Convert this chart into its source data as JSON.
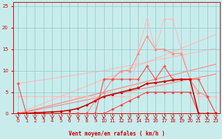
{
  "x": [
    0,
    1,
    2,
    3,
    4,
    5,
    6,
    7,
    8,
    9,
    10,
    11,
    12,
    13,
    14,
    15,
    16,
    17,
    18,
    19,
    20,
    21,
    22,
    23
  ],
  "line_jagged1_y": [
    7,
    0,
    0,
    0,
    0,
    0,
    0,
    0,
    0,
    0,
    8,
    8,
    8,
    8,
    8,
    11,
    8,
    11,
    8,
    8,
    8,
    8,
    4,
    0
  ],
  "line_jagged2_y": [
    4,
    4,
    4,
    4,
    4,
    4,
    4,
    4,
    4,
    4,
    4,
    4,
    4,
    4,
    15,
    22,
    15,
    22,
    22,
    15,
    8,
    4,
    4,
    4
  ],
  "line_jagged3_y": [
    0,
    0,
    0,
    0,
    0,
    0,
    0,
    0,
    0,
    3,
    5,
    8,
    10,
    10,
    14,
    18,
    15,
    15,
    14,
    14,
    8,
    5,
    4,
    0
  ],
  "line_low_y": [
    0,
    0,
    0,
    0,
    0,
    0,
    0,
    0,
    0,
    0,
    0,
    1,
    2,
    3,
    4,
    5,
    5,
    5,
    5,
    5,
    5,
    0,
    0,
    0
  ],
  "line_main_y": [
    0,
    0.1,
    0.2,
    0.3,
    0.4,
    0.5,
    0.8,
    1.2,
    2,
    3,
    4,
    4.5,
    5,
    5.5,
    6,
    7,
    7.2,
    7.5,
    7.8,
    8,
    8,
    0,
    0,
    0
  ],
  "trend_lo1": [
    0,
    0.4,
    0.8,
    1.2,
    1.6,
    2.0,
    2.4,
    2.8,
    3.2,
    3.6,
    4.0,
    4.4,
    4.8,
    5.2,
    5.6,
    6.0,
    6.4,
    6.8,
    7.2,
    7.6,
    8.0,
    8.4,
    8.8,
    9.2
  ],
  "trend_lo2": [
    0,
    0.5,
    1.0,
    1.5,
    2.0,
    2.5,
    3.0,
    3.5,
    4.0,
    4.5,
    5.0,
    5.5,
    6.0,
    6.5,
    7.0,
    7.5,
    8.0,
    8.5,
    9.0,
    9.5,
    10.0,
    10.5,
    11.0,
    11.5
  ],
  "trend_hi1": [
    7,
    7.3,
    7.6,
    7.9,
    8.2,
    8.5,
    8.8,
    9.1,
    9.4,
    9.7,
    10.0,
    10.4,
    10.8,
    11.2,
    11.6,
    12.0,
    12.4,
    12.8,
    13.2,
    13.6,
    14.0,
    14.4,
    14.8,
    15.2
  ],
  "trend_hi2": [
    0,
    0.8,
    1.6,
    2.4,
    3.2,
    4.0,
    4.8,
    5.6,
    6.4,
    7.2,
    8.0,
    8.8,
    9.6,
    10.4,
    11.2,
    12.0,
    12.8,
    13.6,
    14.4,
    15.2,
    16.0,
    16.8,
    17.6,
    18.4
  ],
  "bg_color": "#c8ecec",
  "grid_color": "#99cccc",
  "color_dark_red": "#cc0000",
  "color_mid_red": "#ff4444",
  "color_light_red": "#ff8888",
  "color_pale_red": "#ffbbbb",
  "xlabel": "Vent moyen/en rafales ( km/h )",
  "xlim": [
    -0.5,
    23.5
  ],
  "ylim": [
    0,
    26
  ],
  "yticks": [
    0,
    5,
    10,
    15,
    20,
    25
  ],
  "xticks": [
    0,
    1,
    2,
    3,
    4,
    5,
    6,
    7,
    8,
    9,
    10,
    11,
    12,
    13,
    14,
    15,
    16,
    17,
    18,
    19,
    20,
    21,
    22,
    23
  ]
}
